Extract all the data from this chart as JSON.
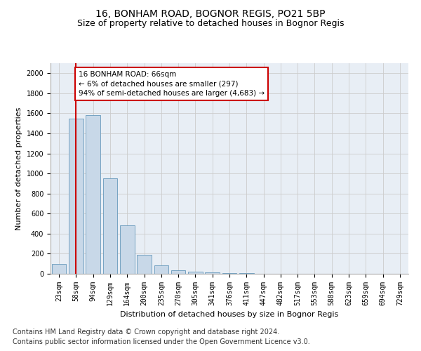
{
  "title_line1": "16, BONHAM ROAD, BOGNOR REGIS, PO21 5BP",
  "title_line2": "Size of property relative to detached houses in Bognor Regis",
  "xlabel": "Distribution of detached houses by size in Bognor Regis",
  "ylabel": "Number of detached properties",
  "categories": [
    "23sqm",
    "58sqm",
    "94sqm",
    "129sqm",
    "164sqm",
    "200sqm",
    "235sqm",
    "270sqm",
    "305sqm",
    "341sqm",
    "376sqm",
    "411sqm",
    "447sqm",
    "482sqm",
    "517sqm",
    "553sqm",
    "588sqm",
    "623sqm",
    "659sqm",
    "694sqm",
    "729sqm"
  ],
  "values": [
    100,
    1545,
    1580,
    950,
    480,
    190,
    85,
    35,
    22,
    15,
    10,
    10,
    3,
    2,
    1,
    1,
    1,
    0,
    0,
    0,
    0
  ],
  "bar_color": "#c8d8e8",
  "bar_edge_color": "#6699bb",
  "vline_x": 1,
  "vline_color": "#cc0000",
  "annotation_text": "16 BONHAM ROAD: 66sqm\n← 6% of detached houses are smaller (297)\n94% of semi-detached houses are larger (4,683) →",
  "annotation_box_color": "#ffffff",
  "annotation_box_edge": "#cc0000",
  "ylim": [
    0,
    2100
  ],
  "yticks": [
    0,
    200,
    400,
    600,
    800,
    1000,
    1200,
    1400,
    1600,
    1800,
    2000
  ],
  "grid_color": "#cccccc",
  "bg_color": "#e8eef5",
  "footer_line1": "Contains HM Land Registry data © Crown copyright and database right 2024.",
  "footer_line2": "Contains public sector information licensed under the Open Government Licence v3.0.",
  "title_fontsize": 10,
  "subtitle_fontsize": 9,
  "axis_label_fontsize": 8,
  "tick_fontsize": 7,
  "footer_fontsize": 7
}
